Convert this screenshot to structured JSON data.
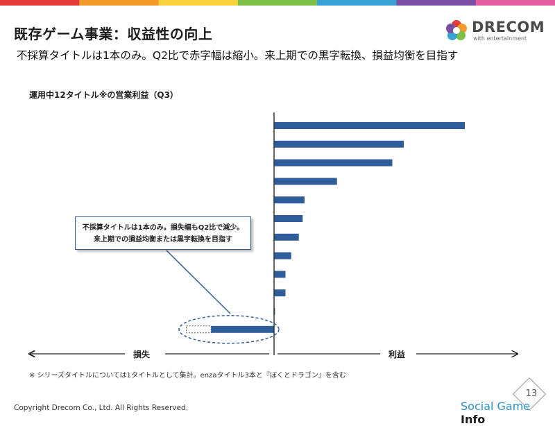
{
  "header": {
    "title": "既存ゲーム事業：収益性の向上",
    "subtitle": "不採算タイトルは1本のみ。Q2比で赤字幅は縮小。来上期での黒字転換、損益均衡を目指す"
  },
  "logo": {
    "word": "DRECOM",
    "tagline": "with entertainment",
    "reg_mark": "®"
  },
  "colors": {
    "bar": "#2f5d9a",
    "axis": "#333333",
    "accent_topbar": [
      "#e43a3a",
      "#f39a2b",
      "#f7d23b",
      "#7cc04a",
      "#3aa3d6",
      "#7a4fa3",
      "#e35fa0"
    ]
  },
  "chart_data": {
    "type": "bar",
    "orientation": "horizontal",
    "title": "運用中12タイトル※の営業利益（Q3）",
    "xlabel_negative": "損失",
    "xlabel_positive": "利益",
    "values": [
      100,
      68,
      62,
      33,
      16,
      15,
      13,
      9,
      6,
      6,
      0.5,
      -33
    ],
    "xlim": [
      -45,
      125
    ],
    "loss_q2_comparison": -46,
    "annotation": "不採算タイトルは1本のみ。損失幅もQ2比で減少。\n来上期での損益均衡または黒字転換を目指す",
    "grid": false,
    "legend": "none"
  },
  "callout": {
    "line1": "不採算タイトルは1本のみ。損失幅もQ2比で減少。",
    "line2": "来上期での損益均衡または黒字転換を目指す"
  },
  "footnote": "※ シリーズタイトルについては1タイトルとして集計。enzaタイトル3本と『ぼくとドラゴン』を含む",
  "footer": {
    "copyright": "Copyright Drecom Co., Ltd. All Rights Reserved.",
    "page_number": "13",
    "watermark_a": "Social Game ",
    "watermark_b": "Info"
  }
}
